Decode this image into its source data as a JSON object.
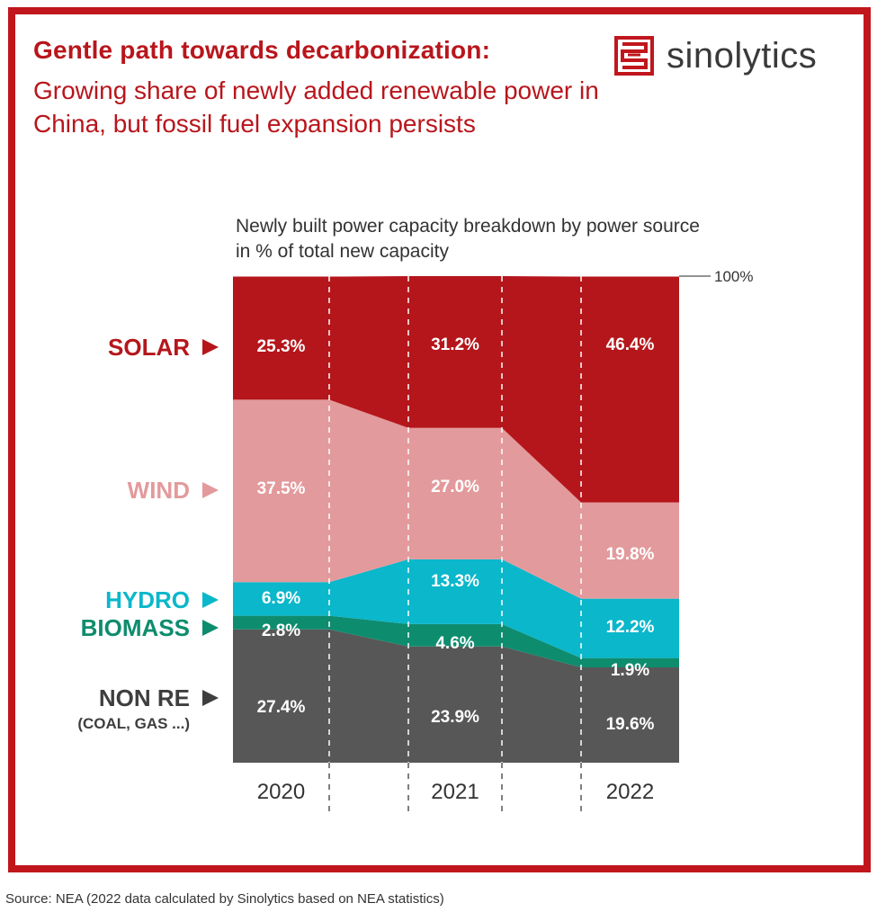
{
  "title": "Gentle path towards decarbonization:",
  "subtitle": "Growing share of newly added renewable power in China, but fossil fuel expansion persists",
  "logo": {
    "text": "sinolytics",
    "icon": "sinolytics-logo-mark"
  },
  "source": "Source: NEA (2022 data calculated by Sinolytics based on NEA statistics)",
  "colors": {
    "frame": "#c0161c",
    "solar": "#b5161b",
    "wind": "#e39a9c",
    "hydro": "#0ab7cb",
    "biomass": "#0e8c6e",
    "non_re": "#575757"
  },
  "chart_data": {
    "type": "area",
    "title": "Newly built power capacity breakdown by power source in % of total new capacity",
    "categories": [
      "2020",
      "2021",
      "2022"
    ],
    "ylim": [
      0,
      100
    ],
    "top_label": "100%",
    "series": [
      {
        "name": "NON RE",
        "sublabel": "(COAL, GAS ...)",
        "values": [
          27.4,
          23.9,
          19.6
        ],
        "labels": [
          "27.4%",
          "23.9%",
          "19.6%"
        ]
      },
      {
        "name": "BIOMASS",
        "values": [
          2.8,
          4.6,
          1.9
        ],
        "labels": [
          "2.8%",
          "4.6%",
          "1.9%"
        ]
      },
      {
        "name": "HYDRO",
        "values": [
          6.9,
          13.3,
          12.2
        ],
        "labels": [
          "6.9%",
          "13.3%",
          "12.2%"
        ]
      },
      {
        "name": "WIND",
        "values": [
          37.5,
          27.0,
          19.8
        ],
        "labels": [
          "37.5%",
          "27.0%",
          "19.8%"
        ]
      },
      {
        "name": "SOLAR",
        "values": [
          25.3,
          31.2,
          46.4
        ],
        "labels": [
          "25.3%",
          "31.2%",
          "46.4%"
        ]
      }
    ]
  }
}
